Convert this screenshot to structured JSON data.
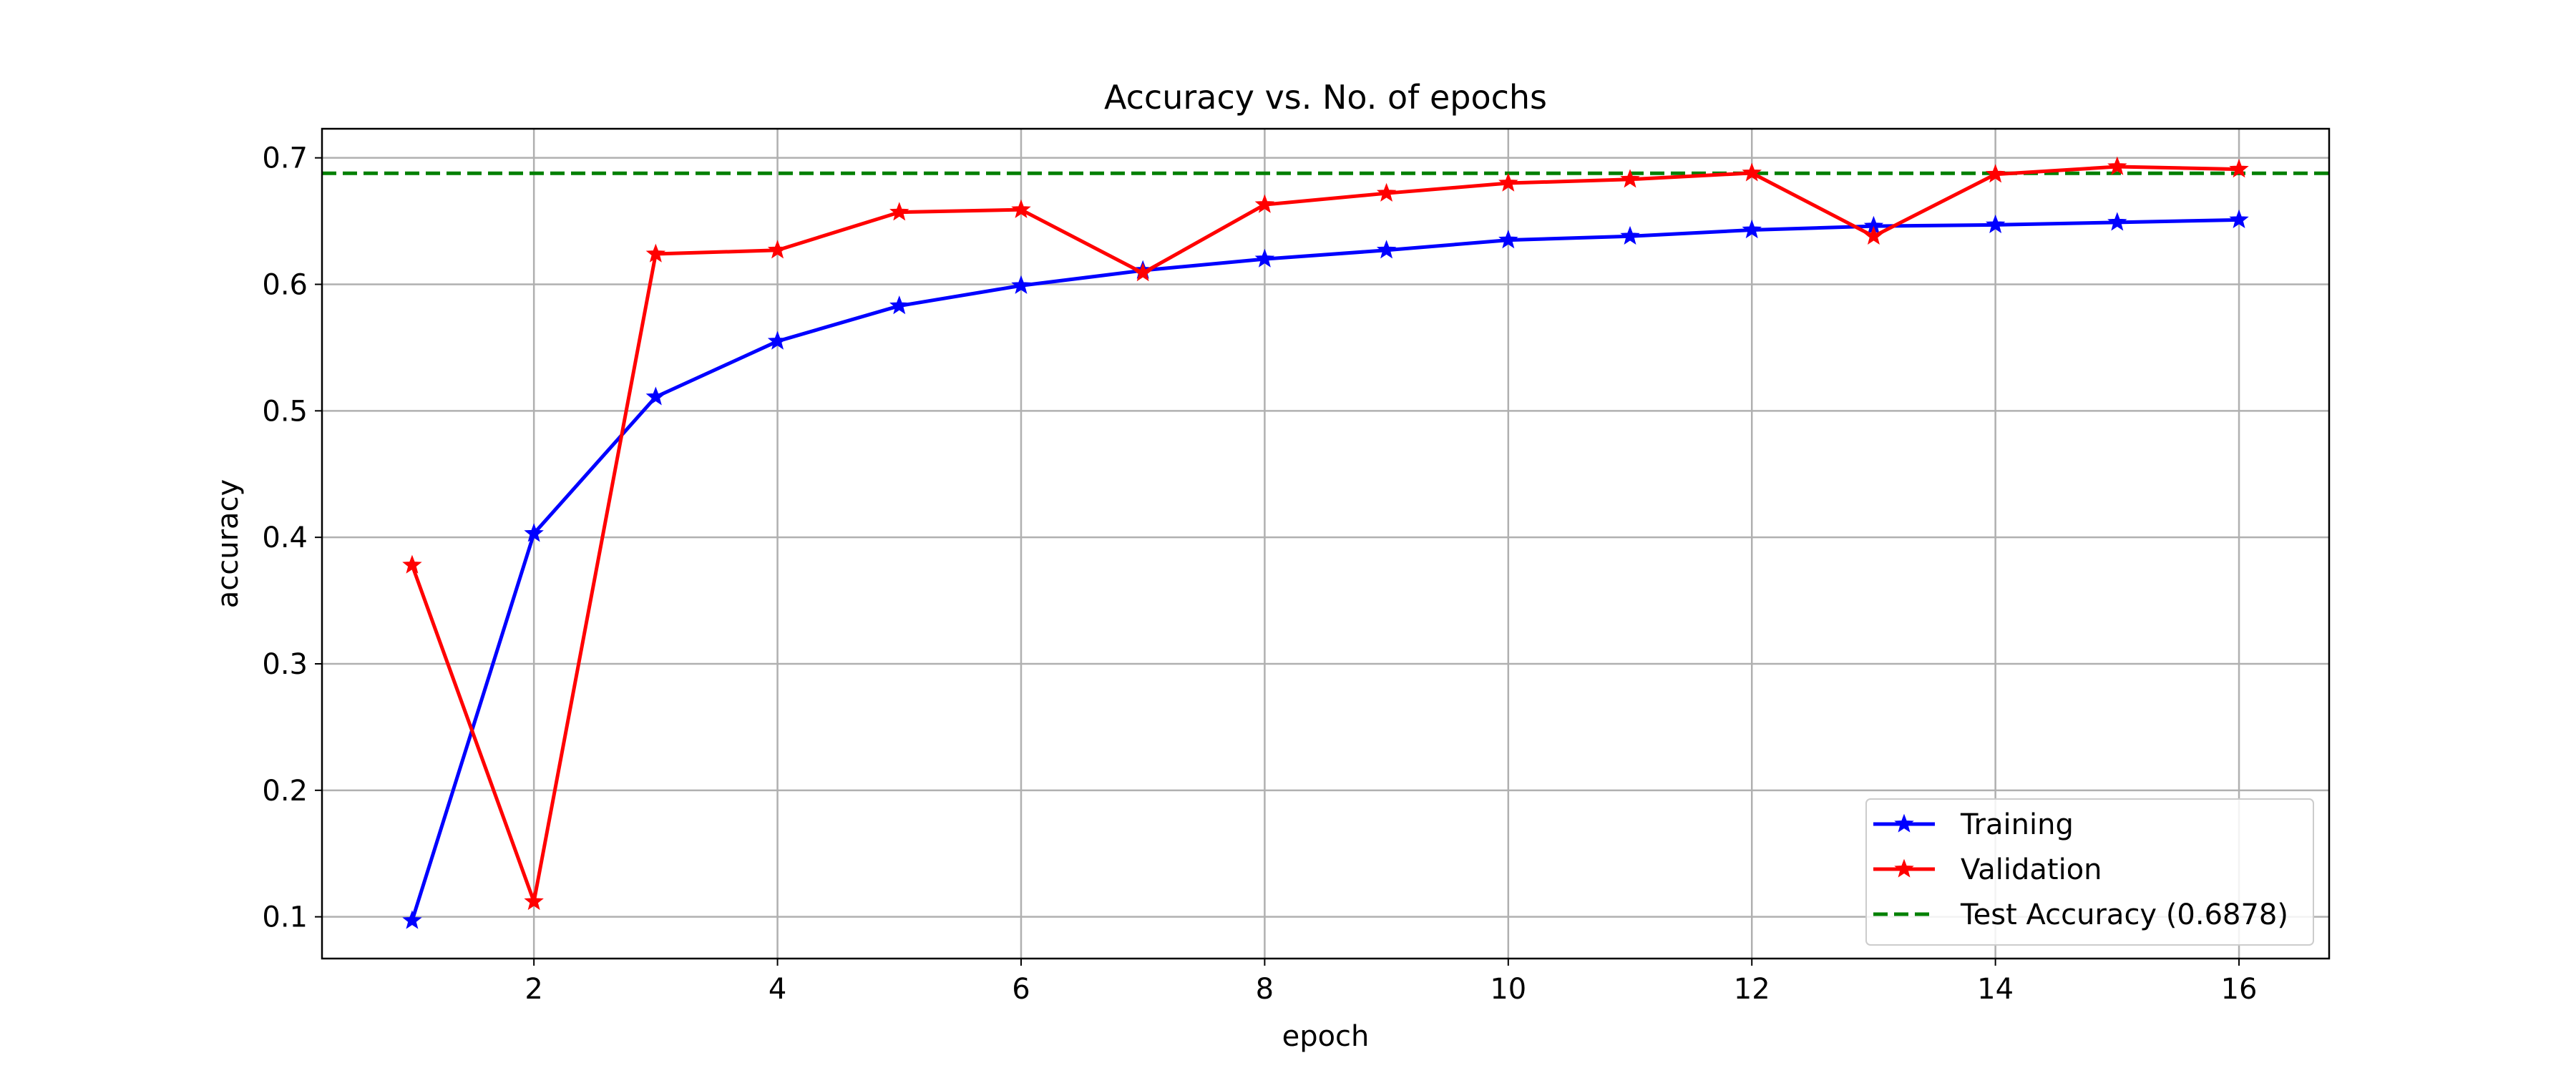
{
  "chart_data": {
    "type": "line",
    "title": "Accuracy vs. No. of epochs",
    "xlabel": "epoch",
    "ylabel": "accuracy",
    "xlim": [
      0.26,
      16.74
    ],
    "ylim": [
      0.067,
      0.723
    ],
    "xticks": [
      2,
      4,
      6,
      8,
      10,
      12,
      14,
      16
    ],
    "yticks": [
      0.1,
      0.2,
      0.3,
      0.4,
      0.5,
      0.6,
      0.7
    ],
    "grid": true,
    "legend_position": "lower-right",
    "x": [
      1,
      2,
      3,
      4,
      5,
      6,
      7,
      8,
      9,
      10,
      11,
      12,
      13,
      14,
      15,
      16
    ],
    "series": [
      {
        "name": "Training",
        "color": "#0000ff",
        "marker": "star",
        "values": [
          0.097,
          0.403,
          0.511,
          0.555,
          0.583,
          0.599,
          0.611,
          0.62,
          0.627,
          0.635,
          0.638,
          0.643,
          0.646,
          0.647,
          0.649,
          0.651
        ]
      },
      {
        "name": "Validation",
        "color": "#ff0000",
        "marker": "star",
        "values": [
          0.378,
          0.112,
          0.624,
          0.627,
          0.657,
          0.659,
          0.609,
          0.663,
          0.672,
          0.68,
          0.683,
          0.688,
          0.638,
          0.687,
          0.693,
          0.691
        ]
      }
    ],
    "reference_lines": [
      {
        "name": "Test Accuracy (0.6878)",
        "value": 0.6878,
        "color": "#008000",
        "style": "dashed"
      }
    ]
  }
}
